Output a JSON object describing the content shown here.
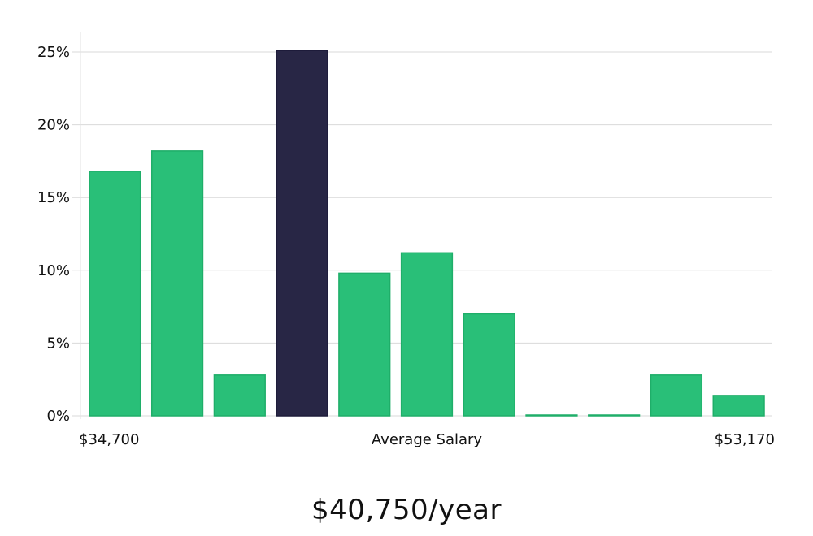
{
  "headline": "$40,750/year",
  "colors": {
    "bar": "#29bf78",
    "bar_edge": "#1fae69",
    "highlight": "#282645",
    "highlight_edge": "#1d1b3a",
    "grid": "#d9d9d9",
    "axis": "#e2e2e2"
  },
  "chart_data": {
    "type": "bar",
    "title": "",
    "xlabel": "Average Salary",
    "ylabel": "",
    "x_start_label": "$34,700",
    "x_end_label": "$53,170",
    "ylim": [
      0,
      25
    ],
    "yticks": [
      0,
      5,
      10,
      15,
      20,
      25
    ],
    "ytick_labels": [
      "0%",
      "5%",
      "10%",
      "15%",
      "20%",
      "25%"
    ],
    "values": [
      16.8,
      18.2,
      2.8,
      25.1,
      9.8,
      11.2,
      7.0,
      0.05,
      0.05,
      2.8,
      1.4
    ],
    "highlight_index": 3,
    "grid": true
  }
}
